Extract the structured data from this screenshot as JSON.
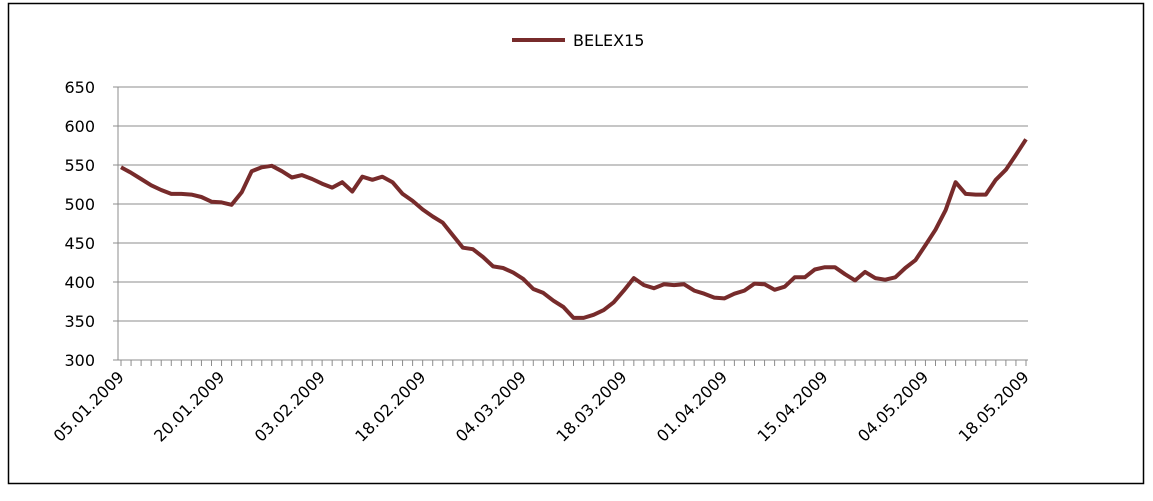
{
  "chart_data": {
    "type": "line",
    "categories": [
      "05.01.2009",
      null,
      null,
      null,
      null,
      null,
      null,
      null,
      null,
      null,
      "20.01.2009",
      null,
      null,
      null,
      null,
      null,
      null,
      null,
      null,
      null,
      "03.02.2009",
      null,
      null,
      null,
      null,
      null,
      null,
      null,
      null,
      null,
      "18.02.2009",
      null,
      null,
      null,
      null,
      null,
      null,
      null,
      null,
      null,
      "04.03.2009",
      null,
      null,
      null,
      null,
      null,
      null,
      null,
      null,
      null,
      "18.03.2009",
      null,
      null,
      null,
      null,
      null,
      null,
      null,
      null,
      null,
      "01.04.2009",
      null,
      null,
      null,
      null,
      null,
      null,
      null,
      null,
      null,
      "15.04.2009",
      null,
      null,
      null,
      null,
      null,
      null,
      null,
      null,
      null,
      "04.05.2009",
      null,
      null,
      null,
      null,
      null,
      null,
      null,
      null,
      null,
      "18.05.2009"
    ],
    "series": [
      {
        "name": "BELEX15",
        "color": "#772b2b",
        "values": [
          547,
          540,
          532,
          524,
          518,
          513,
          513,
          512,
          509,
          503,
          502,
          499,
          515,
          542,
          547,
          549,
          542,
          534,
          537,
          532,
          526,
          521,
          528,
          516,
          535,
          531,
          535,
          528,
          513,
          504,
          493,
          484,
          476,
          460,
          444,
          442,
          432,
          420,
          418,
          412,
          404,
          391,
          386,
          376,
          368,
          354,
          354,
          358,
          364,
          374,
          389,
          405,
          396,
          392,
          397,
          396,
          397,
          389,
          385,
          380,
          379,
          385,
          389,
          398,
          397,
          390,
          394,
          406,
          406,
          416,
          419,
          419,
          410,
          402,
          413,
          405,
          403,
          406,
          418,
          428,
          447,
          467,
          492,
          528,
          513,
          512,
          512,
          531,
          544,
          563,
          583
        ]
      }
    ],
    "ylim": [
      300,
      650
    ],
    "yticks": [
      300,
      350,
      400,
      450,
      500,
      550,
      600,
      650
    ],
    "grid": true,
    "legend": "top"
  }
}
